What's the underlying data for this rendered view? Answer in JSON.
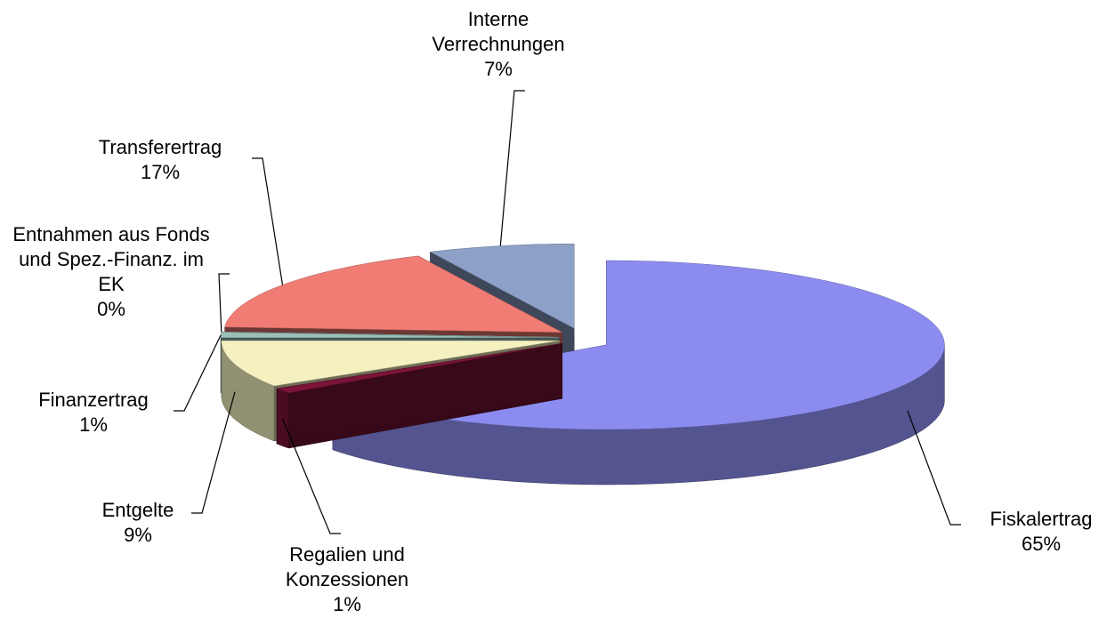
{
  "chart_data": {
    "type": "pie",
    "categories": [
      "Fiskalertrag",
      "Regalien und Konzessionen",
      "Entgelte",
      "Finanzertrag",
      "Entnahmen aus Fonds und Spez.-Finanz. im EK",
      "Transferertrag",
      "Interne Verrechnungen"
    ],
    "values": [
      65,
      1,
      9,
      1,
      0,
      17,
      7
    ],
    "value_labels": [
      "65%",
      "1%",
      "9%",
      "1%",
      "0%",
      "17%",
      "7%"
    ],
    "colors": [
      "#8c8cf0",
      "#7a1438",
      "#f4f0c0",
      "#9cc0b8",
      "#c8f0f4",
      "#f07c74",
      "#8ca0c8"
    ]
  }
}
